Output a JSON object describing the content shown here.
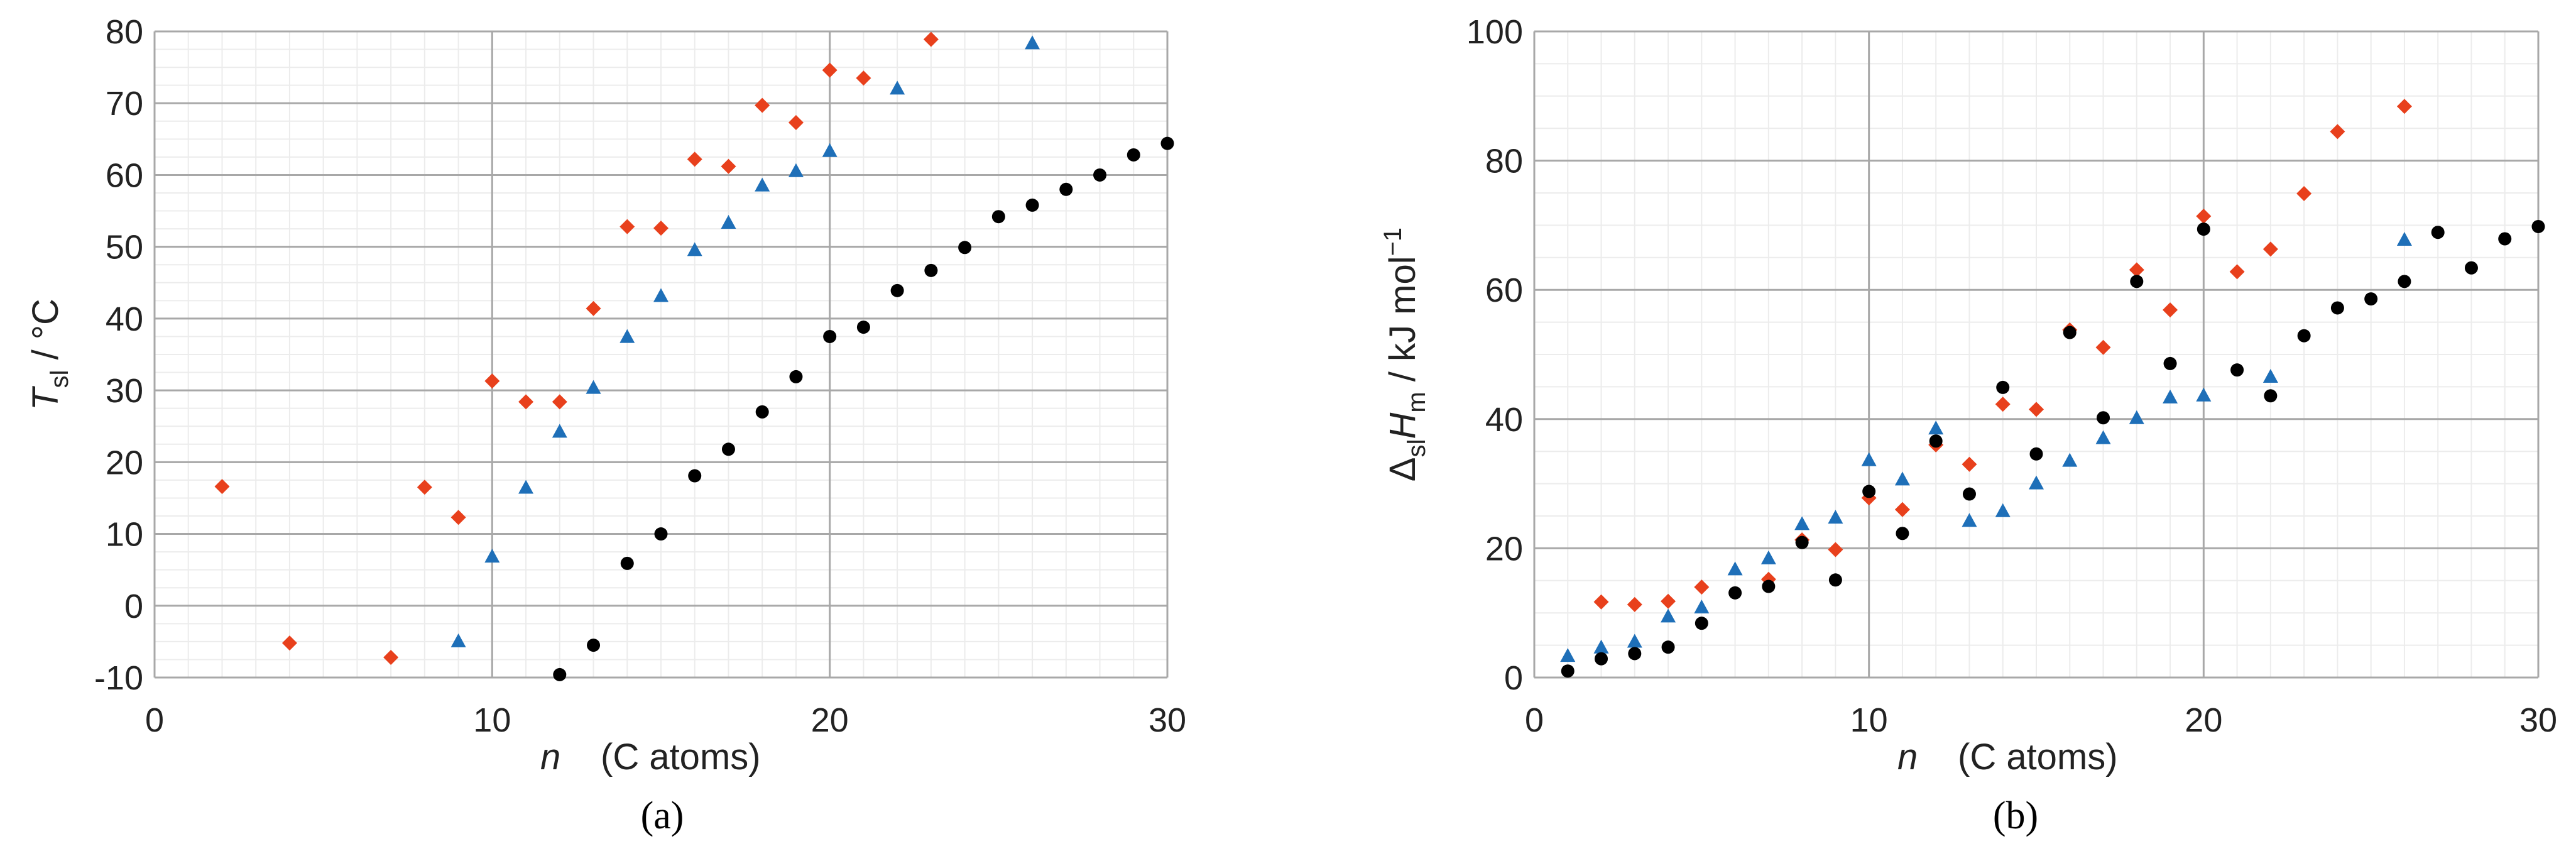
{
  "chart_data": [
    {
      "type": "scatter",
      "panel_label": "(a)",
      "ylabel_main": "T",
      "ylabel_sub": "sl",
      "ylabel_rest": " / °C",
      "xlabel_var": "n",
      "xlabel_rest": "(C atoms)",
      "xlim": [
        0,
        30
      ],
      "ylim": [
        -10,
        80
      ],
      "xticks": [
        "0",
        "10",
        "20",
        "30"
      ],
      "yticks": [
        "-10",
        "0",
        "10",
        "20",
        "30",
        "40",
        "50",
        "60",
        "70",
        "80"
      ],
      "grid": true,
      "series": [
        {
          "marker": "diamond",
          "color": "#e8401c",
          "x": [
            2,
            4,
            7,
            8,
            9,
            10,
            11,
            12,
            13,
            14,
            15,
            16,
            17,
            18,
            19,
            20,
            21,
            23
          ],
          "y": [
            16.6,
            -5.2,
            -7.2,
            16.5,
            12.3,
            31.3,
            28.4,
            28.4,
            41.4,
            52.8,
            52.6,
            62.2,
            61.2,
            69.7,
            67.3,
            74.6,
            73.5,
            78.9
          ]
        },
        {
          "marker": "triangle",
          "color": "#1e6fb8",
          "x": [
            9,
            10,
            11,
            12,
            13,
            14,
            15,
            16,
            17,
            18,
            19,
            20,
            22,
            26
          ],
          "y": [
            -5.0,
            6.8,
            16.4,
            24.2,
            30.3,
            37.4,
            43.1,
            49.5,
            53.3,
            58.5,
            60.5,
            63.3,
            72.0,
            78.3
          ]
        },
        {
          "marker": "circle",
          "color": "#000000",
          "x": [
            12,
            13,
            14,
            15,
            16,
            17,
            18,
            19,
            20,
            21,
            22,
            23,
            24,
            25,
            26,
            27,
            28,
            29,
            30
          ],
          "y": [
            -9.6,
            -5.5,
            5.9,
            10.0,
            18.1,
            21.8,
            27.0,
            31.9,
            37.5,
            38.8,
            43.9,
            46.7,
            49.9,
            54.2,
            55.8,
            58.0,
            60.0,
            62.8,
            64.4
          ]
        }
      ]
    },
    {
      "type": "scatter",
      "panel_label": "(b)",
      "ylabel_main": "Δ",
      "ylabel_sub": "sl",
      "ylabel_h": "H",
      "ylabel_msub": "m",
      "ylabel_rest": " / kJ mol",
      "ylabel_sup": "−1",
      "xlabel_var": "n",
      "xlabel_rest": "(C atoms)",
      "xlim": [
        0,
        30
      ],
      "ylim": [
        0,
        100
      ],
      "xticks": [
        "0",
        "10",
        "20",
        "30"
      ],
      "yticks": [
        "0",
        "20",
        "40",
        "60",
        "80",
        "100"
      ],
      "grid": true,
      "series": [
        {
          "marker": "diamond",
          "color": "#e8401c",
          "x": [
            2,
            3,
            4,
            5,
            7,
            8,
            9,
            10,
            11,
            12,
            13,
            14,
            15,
            16,
            17,
            18,
            19,
            20,
            21,
            22,
            23,
            24,
            26
          ],
          "y": [
            11.7,
            11.3,
            11.8,
            14.0,
            15.2,
            21.3,
            19.8,
            27.8,
            26.0,
            36.0,
            33.0,
            42.3,
            41.5,
            53.8,
            51.1,
            63.1,
            56.9,
            71.4,
            62.8,
            66.3,
            74.9,
            84.5,
            88.4
          ]
        },
        {
          "marker": "triangle",
          "color": "#1e6fb8",
          "x": [
            1,
            2,
            3,
            4,
            5,
            6,
            7,
            8,
            9,
            10,
            11,
            12,
            13,
            14,
            15,
            16,
            17,
            18,
            19,
            20,
            22,
            26
          ],
          "y": [
            3.3,
            4.6,
            5.5,
            9.4,
            10.8,
            16.7,
            18.4,
            23.7,
            24.7,
            33.6,
            30.6,
            38.5,
            24.2,
            25.7,
            30.0,
            33.5,
            37.0,
            40.1,
            43.3,
            43.6,
            46.5,
            67.7
          ]
        },
        {
          "marker": "circle",
          "color": "#000000",
          "x": [
            1,
            2,
            3,
            4,
            5,
            6,
            7,
            8,
            9,
            10,
            11,
            12,
            13,
            14,
            15,
            16,
            17,
            18,
            19,
            20,
            21,
            22,
            23,
            24,
            25,
            26,
            27,
            28,
            29,
            30
          ],
          "y": [
            1.0,
            2.9,
            3.7,
            4.7,
            8.4,
            13.1,
            14.1,
            20.9,
            15.1,
            28.8,
            22.3,
            36.6,
            28.4,
            44.9,
            34.6,
            53.4,
            40.2,
            61.3,
            48.6,
            69.4,
            47.6,
            43.6,
            52.9,
            57.2,
            58.6,
            61.3,
            68.9,
            63.4,
            67.9,
            69.8
          ]
        }
      ]
    }
  ]
}
